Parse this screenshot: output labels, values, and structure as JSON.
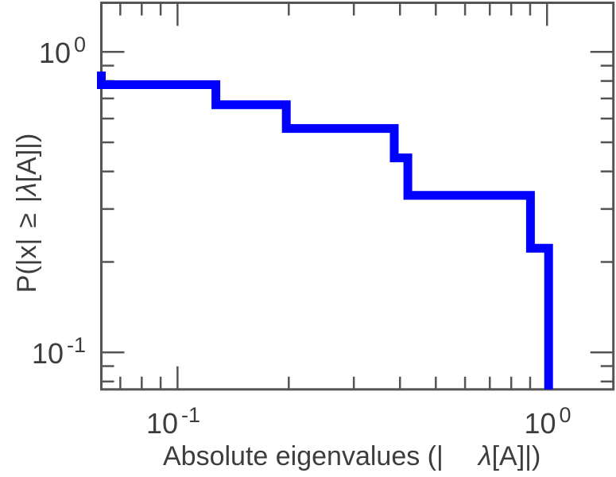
{
  "figure": {
    "background": "#ffffff",
    "axis_color": "#555555",
    "text_color": "#3d3d3d"
  },
  "chart_data": {
    "type": "line",
    "subtype": "step-survival-function",
    "title": "",
    "xlabel": "Absolute eigenvalues (| λ[A]|)",
    "ylabel": "P(|x| ≥ |λ[A]|)",
    "x_scale": "log",
    "y_scale": "log",
    "xlim": [
      0.0622,
      1.512
    ],
    "ylim": [
      0.0753,
      1.457
    ],
    "grid": false,
    "legend": "none",
    "x_major_ticks": [
      0.1,
      1.0
    ],
    "x_minor_ticks": [
      0.07,
      0.08,
      0.09,
      0.2,
      0.3,
      0.4,
      0.5,
      0.6,
      0.7,
      0.8,
      0.9
    ],
    "y_major_ticks": [
      1.0,
      0.1
    ],
    "y_minor_ticks": [
      0.9,
      0.8,
      0.7,
      0.6,
      0.5,
      0.4,
      0.3,
      0.2,
      0.09,
      0.08
    ],
    "tick_labels": {
      "x": [
        {
          "base": "10",
          "exp": "-1"
        },
        {
          "base": "10",
          "exp": "0"
        }
      ],
      "y": [
        {
          "base": "10",
          "exp": "0"
        },
        {
          "base": "10",
          "exp": "-1"
        }
      ]
    },
    "labels": {
      "xlabel_part1": "Absolute eigenvalues (|",
      "xlabel_lambda": "λ",
      "xlabel_part2": "[A]|)",
      "ylabel_part1": "P(|x|",
      "ylabel_geq": "≥",
      "ylabel_pipe": "|",
      "ylabel_lambda": "λ",
      "ylabel_part2": "[A]|)"
    },
    "series": [
      {
        "name": "empirical-ccdf-of-absolute-eigenvalues",
        "color": "#0000ff",
        "line_width": 11,
        "x": [
          0.0622,
          0.0622,
          0.127,
          0.127,
          0.197,
          0.197,
          0.386,
          0.386,
          0.42,
          0.42,
          0.902,
          0.902,
          1.01,
          1.01
        ],
        "y": [
          0.86,
          0.778,
          0.778,
          0.667,
          0.667,
          0.556,
          0.556,
          0.444,
          0.444,
          0.333,
          0.333,
          0.222,
          0.222,
          0.0753
        ]
      }
    ],
    "step_summary": {
      "abs_eigenvalue_drop_positions": [
        0.0622,
        0.127,
        0.197,
        0.386,
        0.42,
        0.902,
        1.01
      ],
      "probability_levels": [
        0.86,
        0.778,
        0.667,
        0.556,
        0.444,
        0.333,
        0.222
      ]
    }
  }
}
